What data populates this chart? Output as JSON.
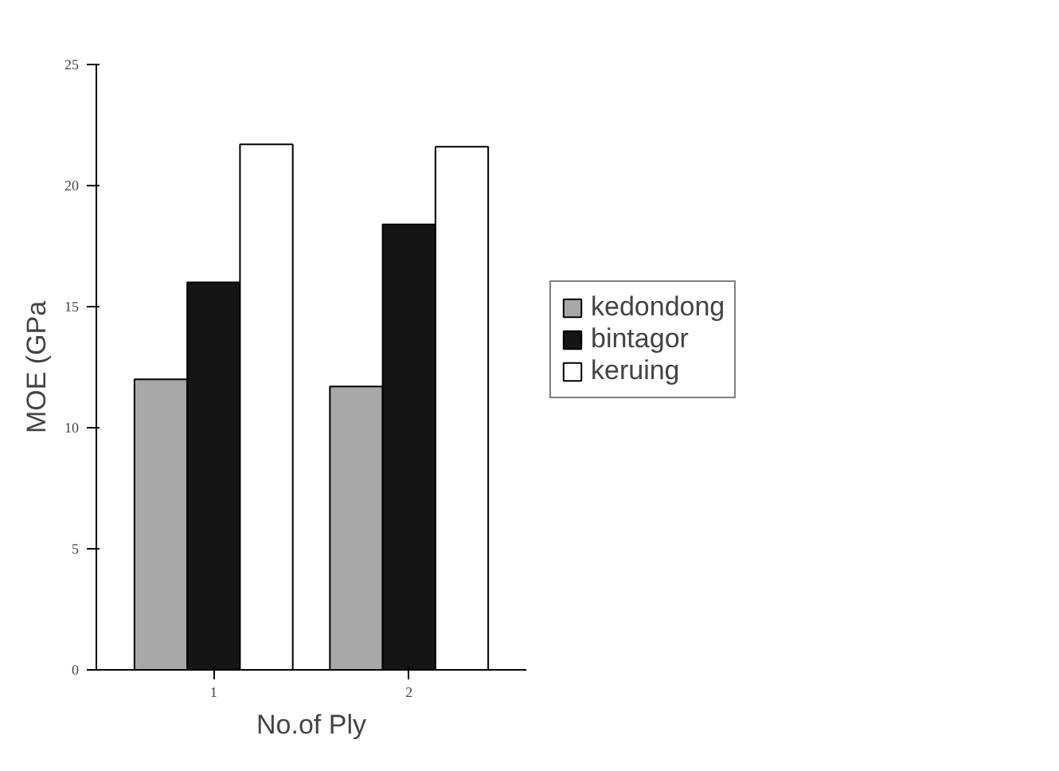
{
  "chart_data": {
    "type": "bar",
    "xlabel": "No.of Ply",
    "ylabel": "MOE (GPa",
    "categories": [
      "1",
      "2"
    ],
    "series": [
      {
        "name": "kedondong",
        "color": "#a8a8a8",
        "values": [
          12.0,
          11.7
        ]
      },
      {
        "name": "bintagor",
        "color": "#151515",
        "values": [
          16.0,
          18.4
        ]
      },
      {
        "name": "keruing",
        "color": "#ffffff",
        "values": [
          21.7,
          21.6
        ]
      }
    ],
    "ylim": [
      0,
      25
    ],
    "yticks": [
      0,
      5,
      10,
      15,
      20,
      25
    ],
    "grid": false,
    "legend": "right"
  }
}
